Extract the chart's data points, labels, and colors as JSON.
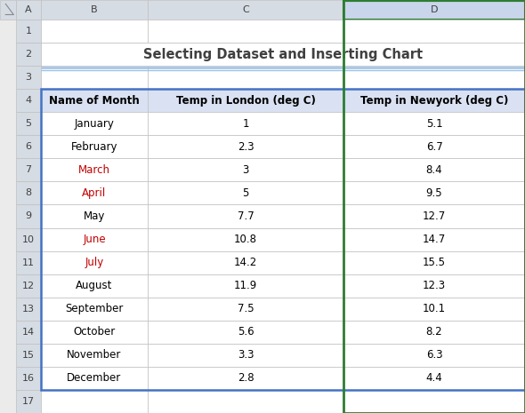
{
  "title": "Selecting Dataset and Inserting Chart",
  "col_headers": [
    "Name of Month",
    "Temp in London (deg C)",
    "Temp in Newyork (deg C)"
  ],
  "months": [
    "January",
    "February",
    "March",
    "April",
    "May",
    "June",
    "July",
    "August",
    "September",
    "October",
    "November",
    "December"
  ],
  "london": [
    1,
    2.3,
    3,
    5,
    7.7,
    10.8,
    14.2,
    11.9,
    7.5,
    5.6,
    3.3,
    2.8
  ],
  "newyork": [
    5.1,
    6.7,
    8.4,
    9.5,
    12.7,
    14.7,
    15.5,
    12.3,
    10.1,
    8.2,
    6.3,
    4.4
  ],
  "spreadsheet_bg": "#EBEBEB",
  "header_bg": "#D9E1F2",
  "cell_bg": "#FFFFFF",
  "col_header_bg": "#D6DCE4",
  "selected_col_bg": "#C9D5EA",
  "selected_col_border": "#2E7D32",
  "title_color": "#404040",
  "title_fontsize": 10.5,
  "header_fontsize": 8.5,
  "cell_fontsize": 8.5,
  "row_num_fontsize": 8,
  "grid_color": "#C0C0C0",
  "table_border_color": "#4472C4",
  "title_underline_color1": "#9DC3E6",
  "title_underline_color2": "#9DC3E6",
  "month_colors": {
    "January": "#000000",
    "February": "#000000",
    "March": "#C00000",
    "April": "#C00000",
    "May": "#000000",
    "June": "#C00000",
    "July": "#C00000",
    "August": "#000000",
    "September": "#000000",
    "October": "#000000",
    "November": "#000000",
    "December": "#000000"
  },
  "corner_bg": "#D6DCE4",
  "total_rows": 17,
  "num_col_labels": [
    "A",
    "B",
    "C",
    "D"
  ]
}
